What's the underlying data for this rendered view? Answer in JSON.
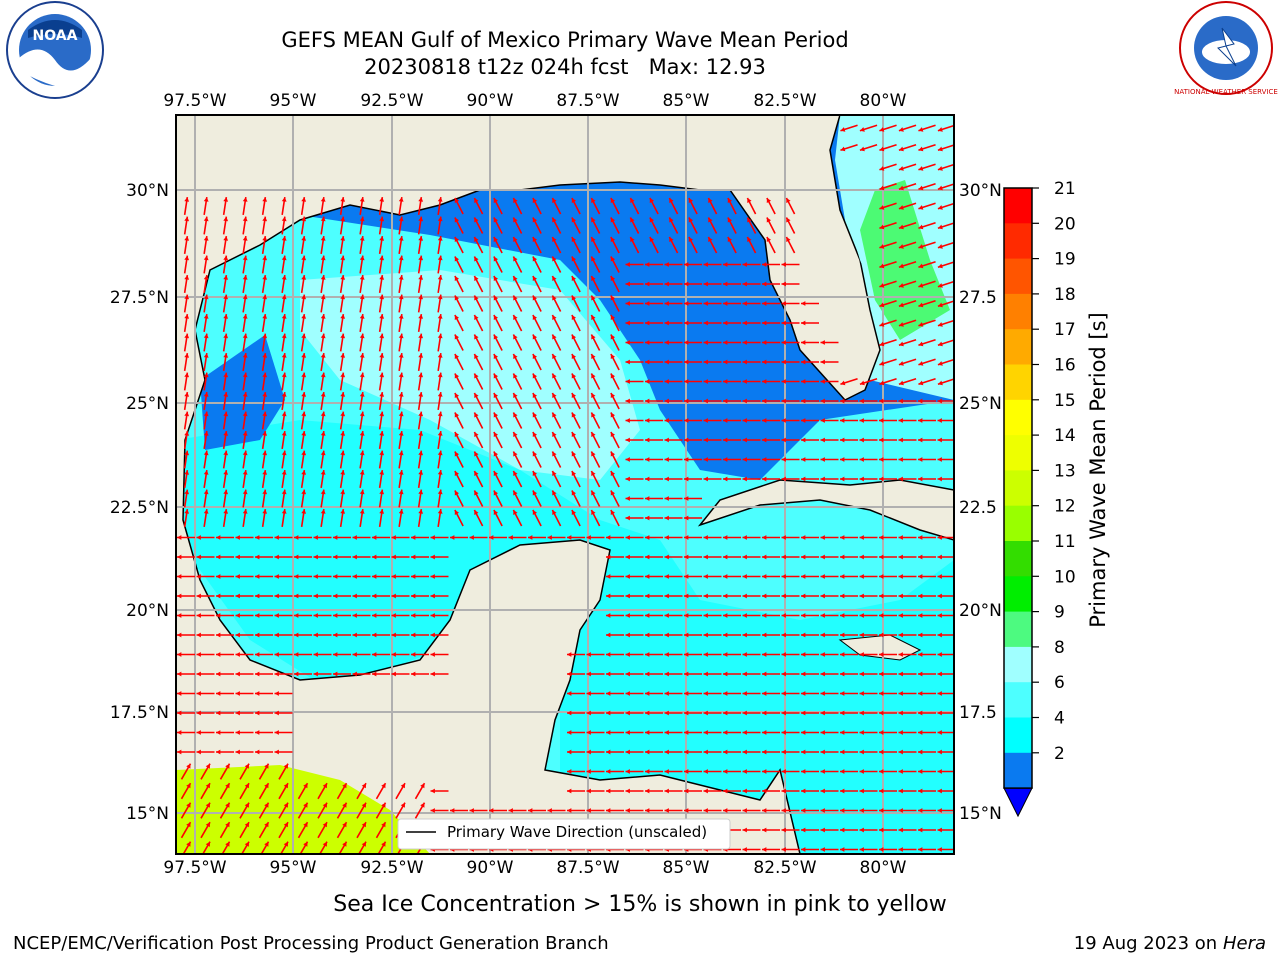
{
  "title": {
    "line1": "GEFS MEAN Gulf of Mexico Primary Wave Mean Period",
    "line2": "20230818 t12z 024h fcst   Max: 12.93"
  },
  "logos": {
    "noara": "NOAA",
    "nws_ring": "NATIONAL WEATHER SERVICE"
  },
  "map": {
    "lon_labels": [
      "97.5°W",
      "95°W",
      "92.5°W",
      "90°W",
      "87.5°W",
      "85°W",
      "82.5°W",
      "80°W"
    ],
    "lat_labels": [
      "30°N",
      "27.5°N",
      "25°N",
      "22.5°N",
      "20°N",
      "17.5°N",
      "15°N"
    ],
    "lat_labels_right": [
      "30°N",
      "27.5",
      "25°N",
      "22.5",
      "20°N",
      "17.5",
      "15°N"
    ],
    "legend_label": "Primary Wave Direction (unscaled)",
    "colors": {
      "land": "#efedde",
      "ocean_2_4": "#0a7af0",
      "ocean_4_6": "#00ffff",
      "ocean_6_8": "#4dffff",
      "ocean_8_9": "#a0ffff",
      "ocean_9_10": "#4cfa74",
      "ice": "#ccff00",
      "arrow": "#ff0000",
      "grid": "#b0b0b0"
    }
  },
  "colorbar": {
    "label": "Primary Wave Mean Period [s]",
    "ticks": [
      "21",
      "20",
      "19",
      "18",
      "17",
      "16",
      "15",
      "14",
      "13",
      "12",
      "11",
      "10",
      "9",
      "8",
      "6",
      "4",
      "2"
    ],
    "colors": [
      "#ff0000",
      "#ff2a00",
      "#ff5500",
      "#ff8000",
      "#ffaa00",
      "#ffd400",
      "#ffff00",
      "#eeff00",
      "#ccff00",
      "#99ff00",
      "#33dd00",
      "#00ee00",
      "#4dfa80",
      "#a0ffff",
      "#4dffff",
      "#00ffff",
      "#0a7af0",
      "#0000ff"
    ]
  },
  "footer": {
    "ice_note": "Sea Ice Concentration > 15% is shown in pink to yellow",
    "credit": "NCEP/EMC/Verification Post Processing Product Generation Branch",
    "date": "19 Aug 2023 on",
    "machine": "Hera"
  }
}
